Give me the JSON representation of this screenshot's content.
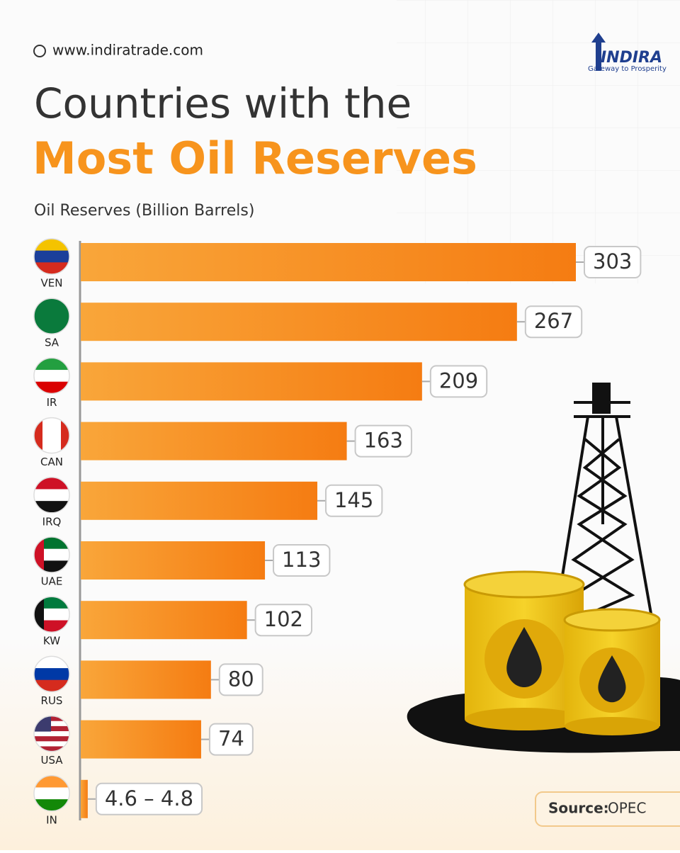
{
  "header": {
    "website": "www.indiratrade.com",
    "logo": "INDIRA",
    "tagline": "Gateway to Prosperity"
  },
  "chart_data": {
    "type": "bar",
    "orientation": "horizontal",
    "title": [
      "Countries with the",
      "Most Oil Reserves"
    ],
    "subtitle": "Oil Reserves (Billion Barrels)",
    "categories": [
      "VEN",
      "SA",
      "IR",
      "CAN",
      "IRQ",
      "UAE",
      "KW",
      "RUS",
      "USA",
      "IN"
    ],
    "values": [
      303,
      267,
      209,
      163,
      145,
      113,
      102,
      80,
      74,
      4.7
    ],
    "value_labels": [
      "303",
      "267",
      "209",
      "163",
      "145",
      "113",
      "102",
      "80",
      "74",
      "4.6 – 4.8"
    ],
    "color": "#f7871b"
  },
  "source": {
    "label": "Source:",
    "value": "OPEC"
  }
}
